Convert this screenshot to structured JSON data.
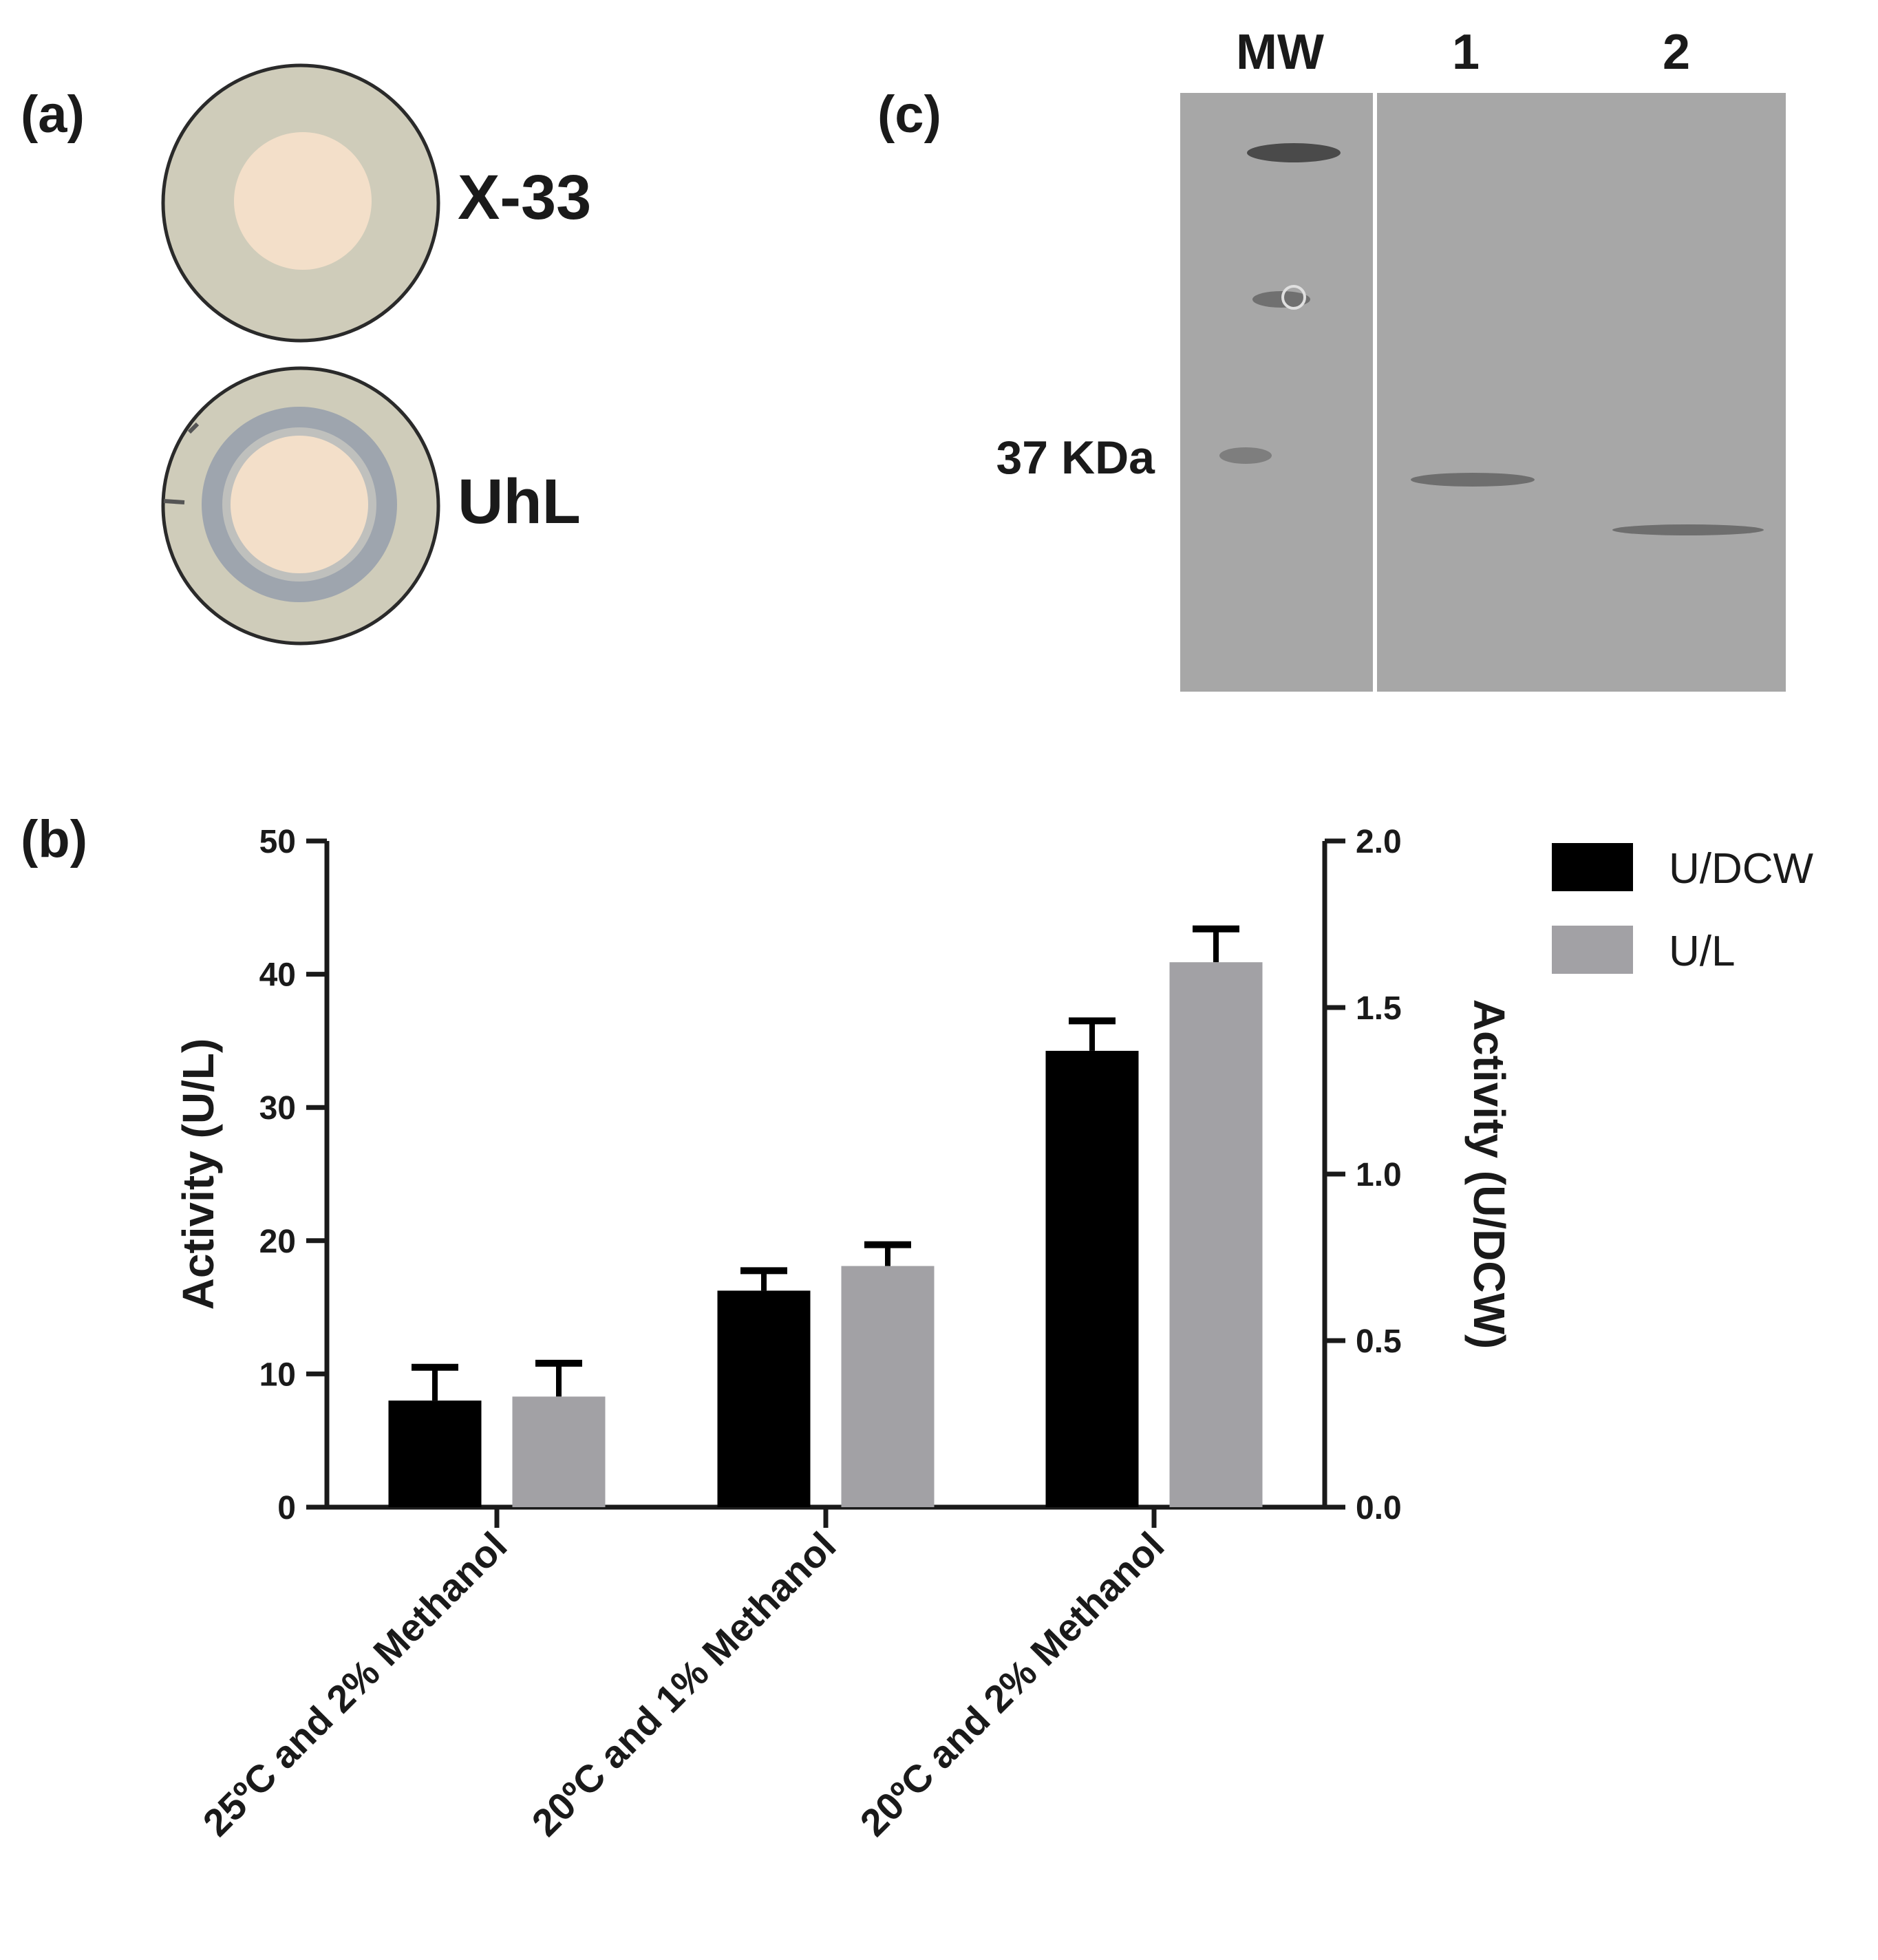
{
  "panels": {
    "a": {
      "label": "(a)",
      "plates": [
        {
          "label": "X-33",
          "halo": false
        },
        {
          "label": "UhL",
          "halo": true
        }
      ]
    },
    "b": {
      "label": "(b)"
    },
    "c": {
      "label": "(c)",
      "lane_labels": [
        "MW",
        "1",
        "2"
      ],
      "marker_label": "37 KDa"
    }
  },
  "colors": {
    "u_dcw": "#000000",
    "u_l": "#a2a1a5",
    "axis": "#1a1a1a",
    "gel": "#a7a7a7",
    "plate_agar": "#cfccba",
    "colony": "#f3dfc9",
    "halo": "#9ea5ae"
  },
  "chart_data": {
    "type": "bar",
    "categories": [
      "25ºC and 2% Methanol",
      "20ºC and 1% Methanol",
      "20ºC and 2% Methanol"
    ],
    "series": [
      {
        "name": "U/DCW",
        "axis": "right",
        "values": [
          0.32,
          0.65,
          1.37
        ],
        "errors": [
          0.1,
          0.06,
          0.09
        ]
      },
      {
        "name": "U/L",
        "axis": "left",
        "values": [
          8.3,
          18.1,
          40.9
        ],
        "errors": [
          2.5,
          1.6,
          2.5
        ]
      }
    ],
    "ylabel_left": "Activity (U/L)",
    "ylim_left": [
      0,
      50
    ],
    "yticks_left": [
      "0",
      "10",
      "20",
      "30",
      "40",
      "50"
    ],
    "ylabel_right": "Activity (U/DCW)",
    "ylim_right": [
      0,
      2.0
    ],
    "yticks_right": [
      "0.0",
      "0.5",
      "1.0",
      "1.5",
      "2.0"
    ],
    "legend_position": "top-right",
    "grid": false
  }
}
